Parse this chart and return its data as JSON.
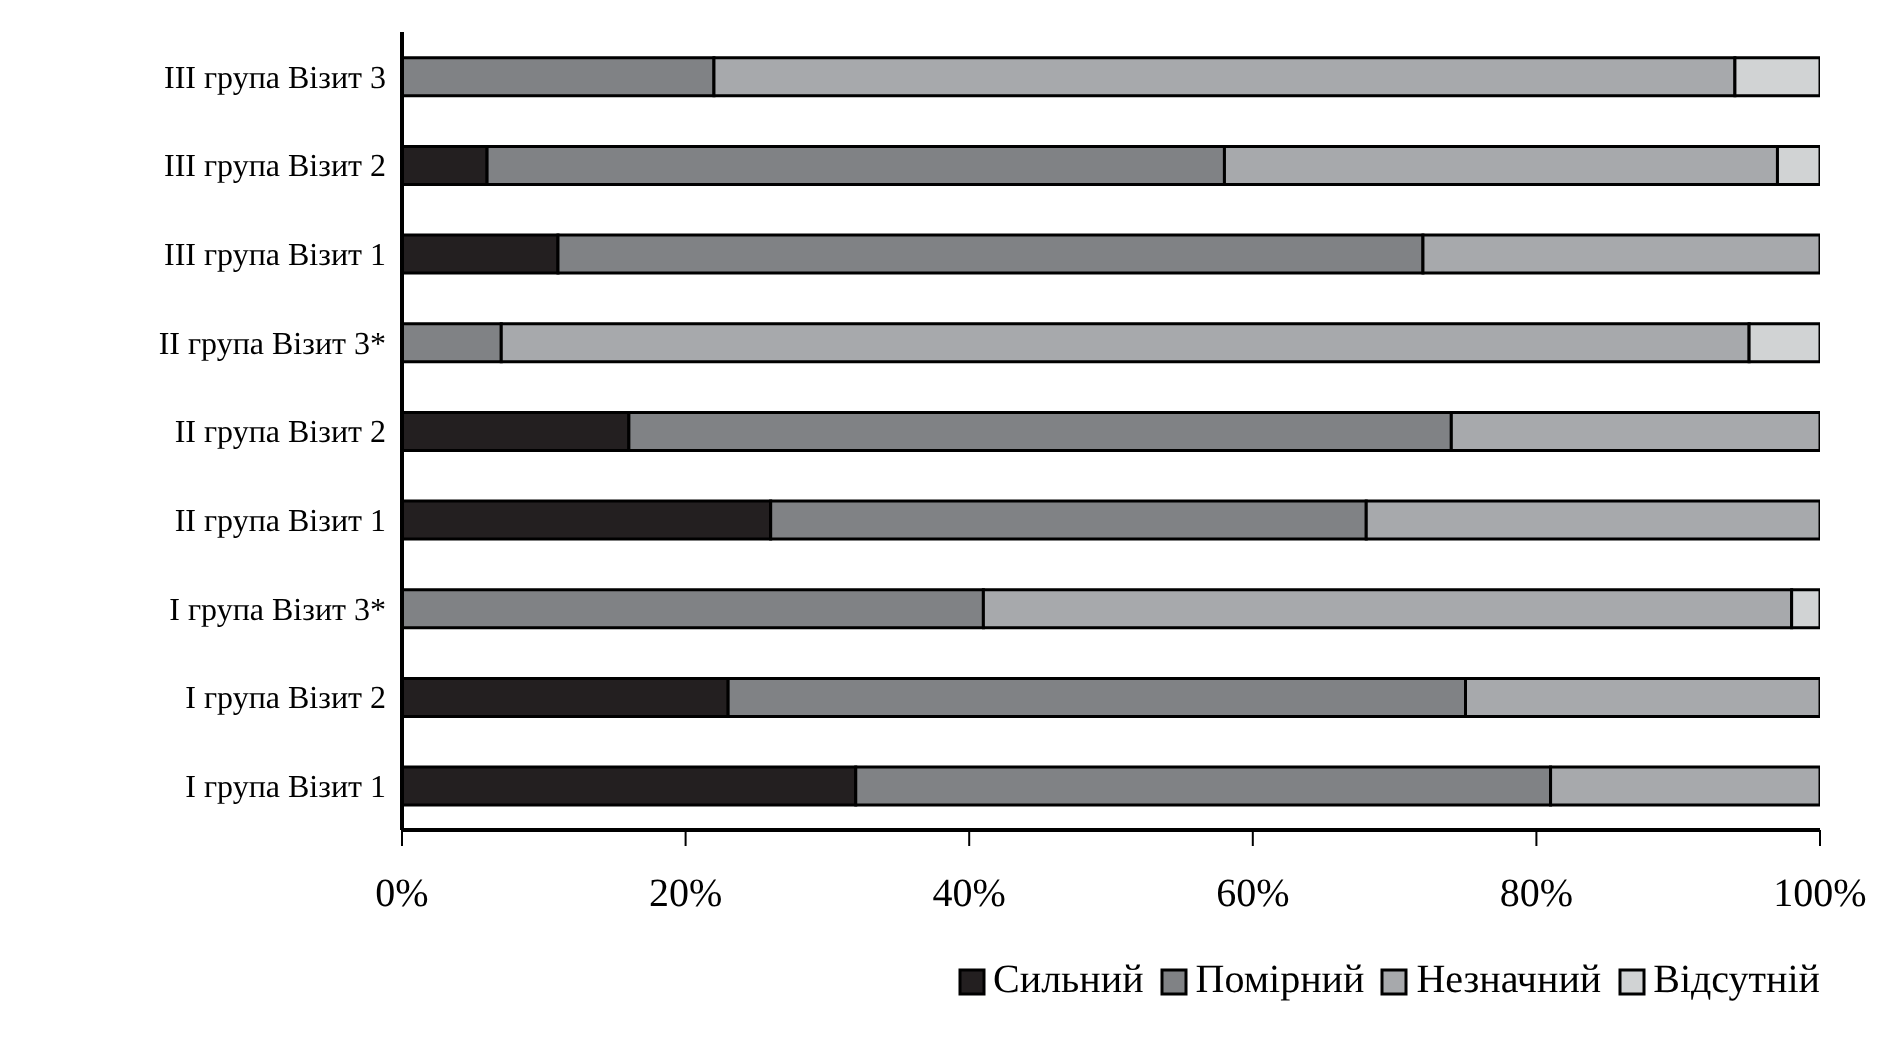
{
  "chart_data": {
    "type": "bar",
    "orientation": "horizontal",
    "stacked": true,
    "categories": [
      "III група Візит 3",
      "III група Візит 2",
      "III група Візит 1",
      "II група Візит 3*",
      "II група Візит 2",
      "II група Візит 1",
      "I група Візит 3*",
      "I група Візит 2",
      "I група Візит 1"
    ],
    "series": [
      {
        "name": "Сильний",
        "color": "#231f20",
        "values": [
          0,
          6,
          11,
          0,
          16,
          26,
          0,
          23,
          32
        ]
      },
      {
        "name": "Помірний",
        "color": "#808285",
        "values": [
          22,
          52,
          61,
          7,
          58,
          42,
          41,
          52,
          49
        ]
      },
      {
        "name": "Незначний",
        "color": "#a7a9ac",
        "values": [
          72,
          39,
          28,
          88,
          26,
          32,
          57,
          25,
          19
        ]
      },
      {
        "name": "Відсутній",
        "color": "#d1d3d4",
        "values": [
          6,
          3,
          0,
          5,
          0,
          0,
          2,
          0,
          0
        ]
      }
    ],
    "xlim": [
      0,
      100
    ],
    "xticks": [
      {
        "value": 0,
        "label": "0%"
      },
      {
        "value": 20,
        "label": "20%"
      },
      {
        "value": 40,
        "label": "40%"
      },
      {
        "value": 60,
        "label": "60%"
      },
      {
        "value": 80,
        "label": "80%"
      },
      {
        "value": 100,
        "label": "100%"
      }
    ],
    "grid": false,
    "legend": "bottom right"
  }
}
